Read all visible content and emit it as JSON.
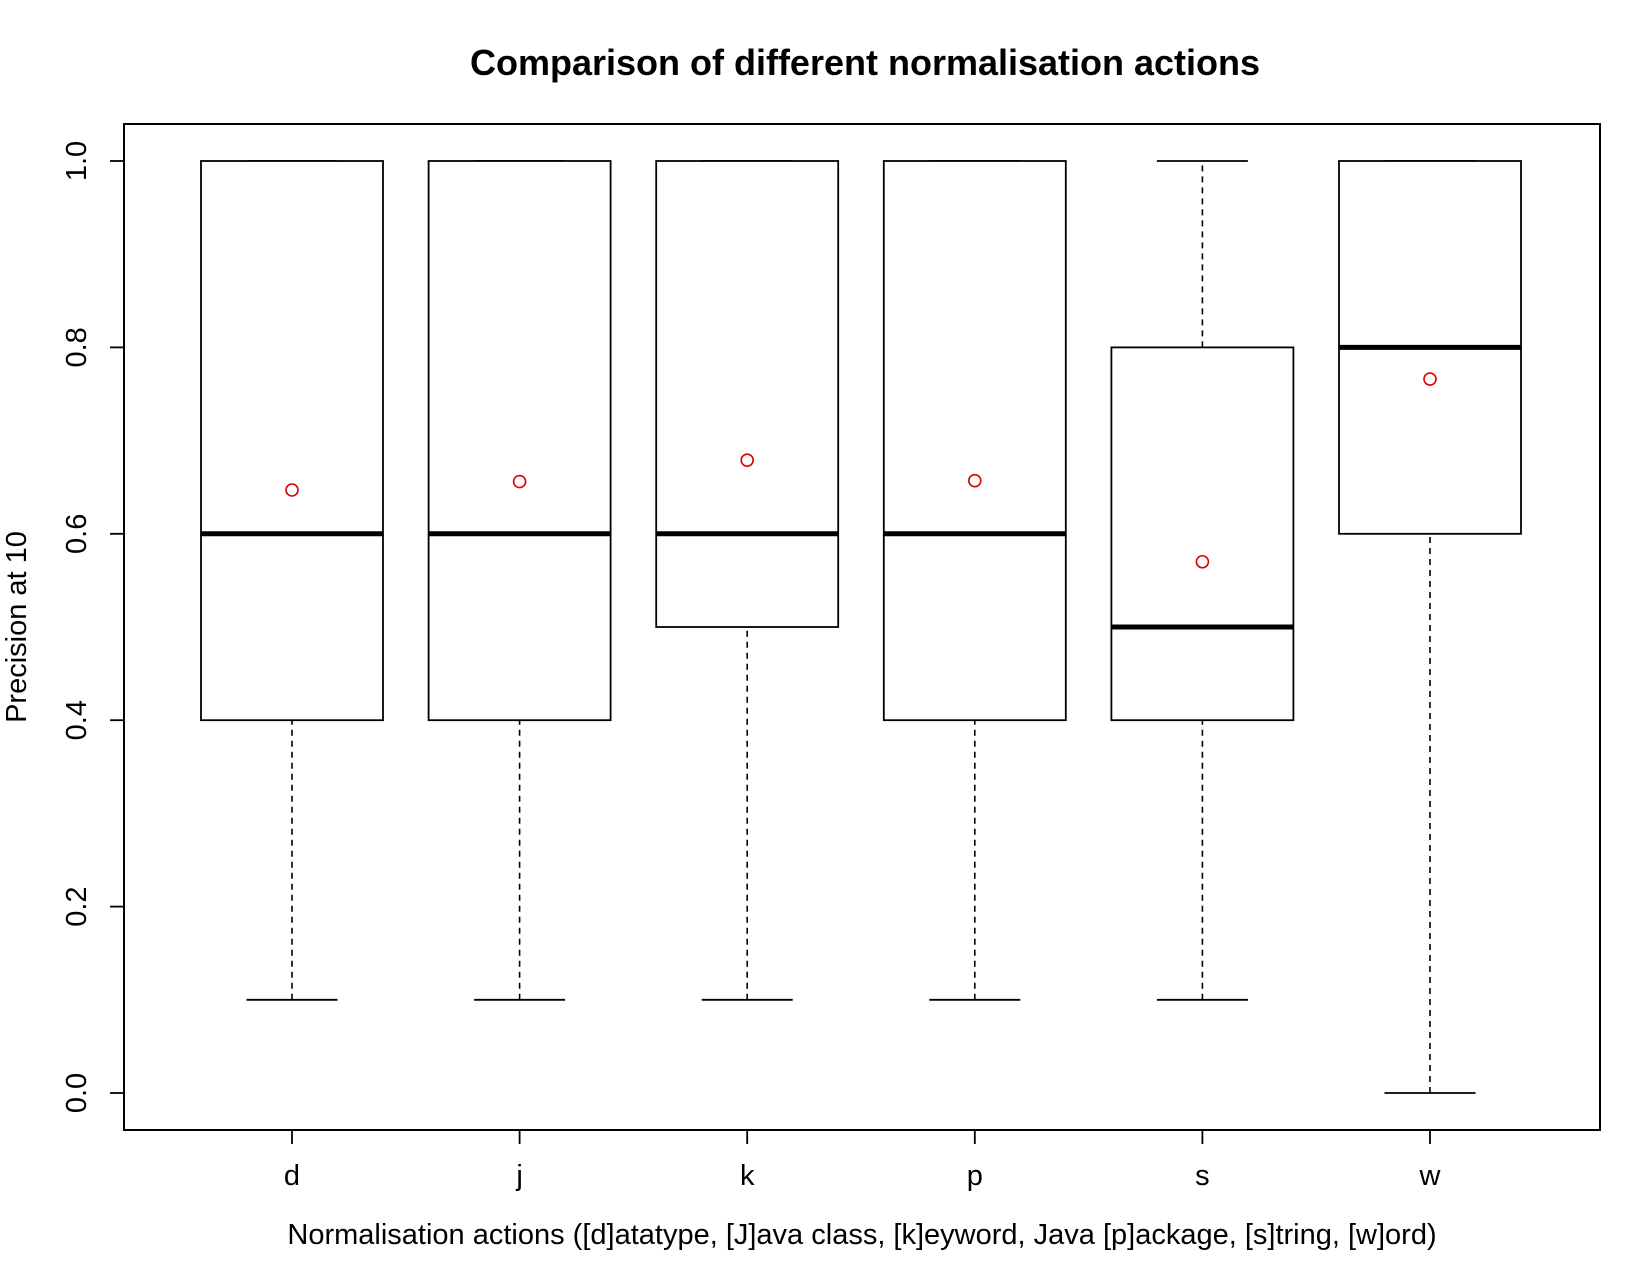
{
  "chart_data": {
    "type": "box",
    "title": "Comparison of different normalisation actions",
    "xlabel": "Normalisation actions ([d]atatype, [J]ava class, [k]eyword, Java [p]ackage, [s]tring, [w]ord)",
    "ylabel": "Precision at 10",
    "ylim": [
      -0.04,
      1.04
    ],
    "yticks": [
      0.0,
      0.2,
      0.4,
      0.6,
      0.8,
      1.0
    ],
    "ytick_labels": [
      "0.0",
      "0.2",
      "0.4",
      "0.6",
      "0.8",
      "1.0"
    ],
    "categories": [
      "d",
      "j",
      "k",
      "p",
      "s",
      "w"
    ],
    "boxes": [
      {
        "category": "d",
        "whisker_low": 0.1,
        "q1": 0.4,
        "median": 0.6,
        "q3": 1.0,
        "whisker_high": 1.0,
        "mean": 0.647
      },
      {
        "category": "j",
        "whisker_low": 0.1,
        "q1": 0.4,
        "median": 0.6,
        "q3": 1.0,
        "whisker_high": 1.0,
        "mean": 0.656
      },
      {
        "category": "k",
        "whisker_low": 0.1,
        "q1": 0.5,
        "median": 0.6,
        "q3": 1.0,
        "whisker_high": 1.0,
        "mean": 0.679
      },
      {
        "category": "p",
        "whisker_low": 0.1,
        "q1": 0.4,
        "median": 0.6,
        "q3": 1.0,
        "whisker_high": 1.0,
        "mean": 0.657
      },
      {
        "category": "s",
        "whisker_low": 0.1,
        "q1": 0.4,
        "median": 0.5,
        "q3": 0.8,
        "whisker_high": 1.0,
        "mean": 0.57
      },
      {
        "category": "w",
        "whisker_low": 0.0,
        "q1": 0.6,
        "median": 0.8,
        "q3": 1.0,
        "whisker_high": 1.0,
        "mean": 0.766
      }
    ],
    "colors": {
      "box": "#000000",
      "mean_marker": "#dd0000",
      "background": "#ffffff"
    },
    "grid": false,
    "legend": "none"
  }
}
